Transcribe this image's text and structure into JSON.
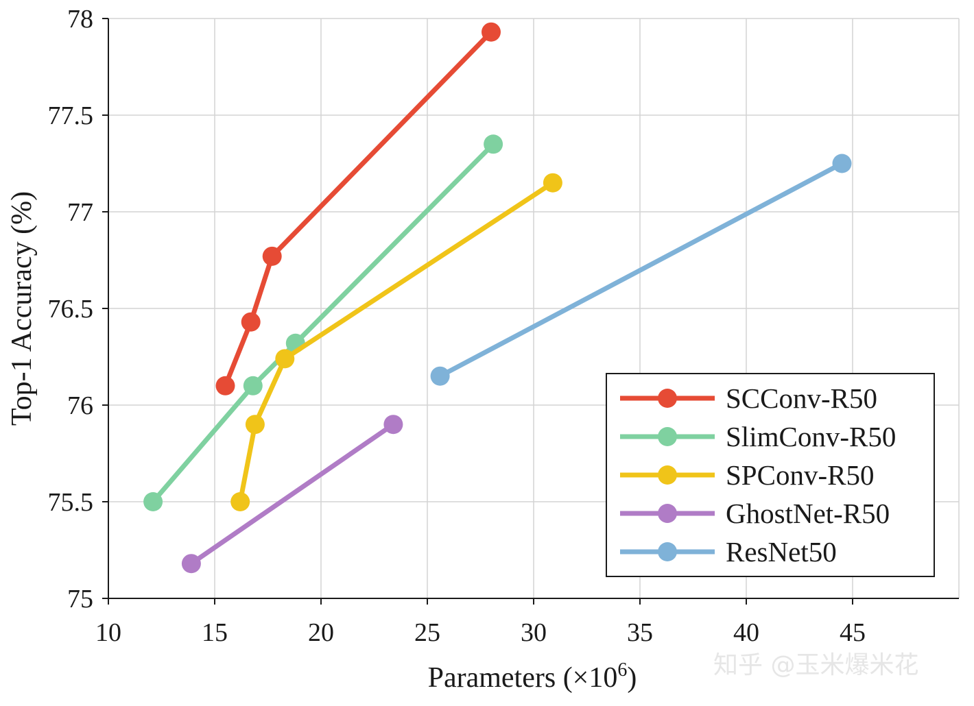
{
  "chart_data": {
    "type": "line",
    "title": "",
    "xlabel": "Parameters (×10",
    "xlabel_exponent": "6",
    "xlabel_close": ")",
    "ylabel": "Top-1 Accuracy (%)",
    "xlim": [
      10,
      50
    ],
    "ylim": [
      75,
      78
    ],
    "xticks": [
      10,
      15,
      20,
      25,
      30,
      35,
      40,
      45
    ],
    "yticks": [
      75,
      75.5,
      76,
      76.5,
      77,
      77.5,
      78
    ],
    "xtick_labels": [
      "10",
      "15",
      "20",
      "25",
      "30",
      "35",
      "40",
      "45"
    ],
    "ytick_labels": [
      "75",
      "75.5",
      "76",
      "76.5",
      "77",
      "77.5",
      "78"
    ],
    "grid": true,
    "legend_position": "bottom-right",
    "series": [
      {
        "name": "SCConv-R50",
        "color": "#e64b35",
        "points": [
          [
            15.5,
            76.1
          ],
          [
            16.7,
            76.43
          ],
          [
            17.7,
            76.77
          ],
          [
            28.0,
            77.93
          ]
        ]
      },
      {
        "name": "SlimConv-R50",
        "color": "#7fd1a0",
        "points": [
          [
            12.1,
            75.5
          ],
          [
            16.8,
            76.1
          ],
          [
            18.8,
            76.32
          ],
          [
            28.1,
            77.35
          ]
        ]
      },
      {
        "name": "SPConv-R50",
        "color": "#f0c419",
        "points": [
          [
            16.2,
            75.5
          ],
          [
            16.9,
            75.9
          ],
          [
            18.3,
            76.24
          ],
          [
            30.9,
            77.15
          ]
        ]
      },
      {
        "name": "GhostNet-R50",
        "color": "#b07cc6",
        "points": [
          [
            13.9,
            75.18
          ],
          [
            23.4,
            75.9
          ]
        ]
      },
      {
        "name": "ResNet50",
        "color": "#7fb2d8",
        "points": [
          [
            25.6,
            76.15
          ],
          [
            44.5,
            77.25
          ]
        ]
      }
    ]
  },
  "watermark": "知乎 @玉米爆米花"
}
